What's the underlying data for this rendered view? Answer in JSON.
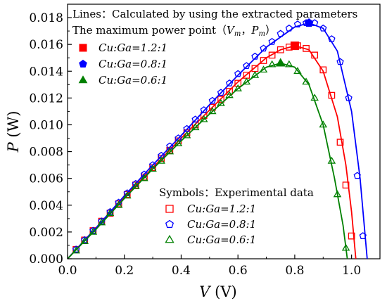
{
  "chart_data": {
    "type": "scatter",
    "xlabel": "V (V)",
    "ylabel": "P (W)",
    "xlim": [
      0,
      1.1
    ],
    "ylim": [
      0,
      0.019
    ],
    "xticks": [
      "0.0",
      "0.2",
      "0.4",
      "0.6",
      "0.8",
      "1.0"
    ],
    "yticks": [
      "0.000",
      "0.002",
      "0.004",
      "0.006",
      "0.008",
      "0.010",
      "0.012",
      "0.014",
      "0.016",
      "0.018"
    ],
    "grid": false,
    "legend_top": {
      "line1": "Lines：Calculated by using the extracted parameters",
      "line2": "The maximum power point（Vm，Pm）",
      "entries": [
        {
          "label": "Cu:Ga=1.2:1",
          "marker": "square-filled",
          "color": "#ff0000"
        },
        {
          "label": "Cu:Ga=0.8:1",
          "marker": "pentagon-filled",
          "color": "#0000ff"
        },
        {
          "label": "Cu:Ga=0.6:1",
          "marker": "triangle-filled",
          "color": "#008000"
        }
      ]
    },
    "legend_bottom": {
      "title": "Symbols：Experimental data",
      "entries": [
        {
          "label": "Cu:Ga=1.2:1",
          "marker": "square-open",
          "color": "#ff0000"
        },
        {
          "label": "Cu:Ga=0.8:1",
          "marker": "pentagon-open",
          "color": "#0000ff"
        },
        {
          "label": "Cu:Ga=0.6:1",
          "marker": "triangle-open",
          "color": "#008000"
        }
      ]
    },
    "series": [
      {
        "name": "Cu:Ga=1.2:1",
        "color": "#ff0000",
        "marker": "square",
        "mpp": {
          "V": 0.8,
          "P": 0.0159
        },
        "voc": 1.015,
        "curve": [
          [
            0,
            0
          ],
          [
            0.1,
            0.0023
          ],
          [
            0.2,
            0.0046
          ],
          [
            0.3,
            0.0068
          ],
          [
            0.4,
            0.009
          ],
          [
            0.5,
            0.0111
          ],
          [
            0.6,
            0.0132
          ],
          [
            0.7,
            0.015
          ],
          [
            0.75,
            0.0156
          ],
          [
            0.8,
            0.0159
          ],
          [
            0.85,
            0.0156
          ],
          [
            0.9,
            0.014
          ],
          [
            0.95,
            0.0106
          ],
          [
            0.98,
            0.007
          ],
          [
            1.0,
            0.0035
          ],
          [
            1.015,
            0
          ]
        ],
        "points": [
          [
            0.03,
            0.0007
          ],
          [
            0.06,
            0.0014
          ],
          [
            0.09,
            0.0021
          ],
          [
            0.12,
            0.0028
          ],
          [
            0.15,
            0.0034
          ],
          [
            0.18,
            0.0041
          ],
          [
            0.21,
            0.0048
          ],
          [
            0.24,
            0.0055
          ],
          [
            0.27,
            0.0061
          ],
          [
            0.3,
            0.0068
          ],
          [
            0.33,
            0.0075
          ],
          [
            0.36,
            0.0081
          ],
          [
            0.39,
            0.0088
          ],
          [
            0.42,
            0.0094
          ],
          [
            0.45,
            0.01
          ],
          [
            0.48,
            0.0107
          ],
          [
            0.51,
            0.0113
          ],
          [
            0.54,
            0.0119
          ],
          [
            0.57,
            0.0125
          ],
          [
            0.6,
            0.0131
          ],
          [
            0.63,
            0.0137
          ],
          [
            0.66,
            0.0142
          ],
          [
            0.69,
            0.0148
          ],
          [
            0.72,
            0.0152
          ],
          [
            0.75,
            0.0156
          ],
          [
            0.78,
            0.0158
          ],
          [
            0.81,
            0.0159
          ],
          [
            0.84,
            0.0157
          ],
          [
            0.87,
            0.0152
          ],
          [
            0.9,
            0.0141
          ],
          [
            0.93,
            0.0122
          ],
          [
            0.96,
            0.0087
          ],
          [
            0.98,
            0.0055
          ],
          [
            1.0,
            0.0017
          ]
        ]
      },
      {
        "name": "Cu:Ga=0.8:1",
        "color": "#0000ff",
        "marker": "pentagon",
        "mpp": {
          "V": 0.85,
          "P": 0.0176
        },
        "voc": 1.055,
        "curve": [
          [
            0,
            0
          ],
          [
            0.1,
            0.0023
          ],
          [
            0.2,
            0.0047
          ],
          [
            0.3,
            0.007
          ],
          [
            0.4,
            0.0092
          ],
          [
            0.5,
            0.0115
          ],
          [
            0.6,
            0.0137
          ],
          [
            0.7,
            0.0158
          ],
          [
            0.8,
            0.0173
          ],
          [
            0.85,
            0.0176
          ],
          [
            0.9,
            0.0172
          ],
          [
            0.95,
            0.0155
          ],
          [
            1.0,
            0.011
          ],
          [
            1.03,
            0.006
          ],
          [
            1.055,
            0
          ]
        ],
        "points": [
          [
            0.03,
            0.0007
          ],
          [
            0.06,
            0.0014
          ],
          [
            0.09,
            0.0021
          ],
          [
            0.12,
            0.0028
          ],
          [
            0.15,
            0.0035
          ],
          [
            0.18,
            0.0042
          ],
          [
            0.21,
            0.0049
          ],
          [
            0.24,
            0.0056
          ],
          [
            0.27,
            0.0063
          ],
          [
            0.3,
            0.007
          ],
          [
            0.33,
            0.0077
          ],
          [
            0.36,
            0.0084
          ],
          [
            0.39,
            0.009
          ],
          [
            0.42,
            0.0097
          ],
          [
            0.45,
            0.0104
          ],
          [
            0.48,
            0.0111
          ],
          [
            0.51,
            0.0118
          ],
          [
            0.54,
            0.0124
          ],
          [
            0.57,
            0.0131
          ],
          [
            0.6,
            0.0138
          ],
          [
            0.63,
            0.0144
          ],
          [
            0.66,
            0.0151
          ],
          [
            0.69,
            0.0157
          ],
          [
            0.72,
            0.0162
          ],
          [
            0.75,
            0.0168
          ],
          [
            0.78,
            0.0172
          ],
          [
            0.81,
            0.0175
          ],
          [
            0.84,
            0.0176
          ],
          [
            0.87,
            0.0176
          ],
          [
            0.9,
            0.0172
          ],
          [
            0.93,
            0.0164
          ],
          [
            0.96,
            0.0147
          ],
          [
            0.99,
            0.012
          ],
          [
            1.02,
            0.0062
          ],
          [
            1.04,
            0.0017
          ]
        ]
      },
      {
        "name": "Cu:Ga=0.6:1",
        "color": "#008000",
        "marker": "triangle",
        "mpp": {
          "V": 0.75,
          "P": 0.0146
        },
        "voc": 0.985,
        "curve": [
          [
            0,
            0
          ],
          [
            0.1,
            0.0022
          ],
          [
            0.2,
            0.0045
          ],
          [
            0.3,
            0.0067
          ],
          [
            0.4,
            0.0088
          ],
          [
            0.5,
            0.0108
          ],
          [
            0.6,
            0.0127
          ],
          [
            0.7,
            0.0143
          ],
          [
            0.75,
            0.0146
          ],
          [
            0.8,
            0.0143
          ],
          [
            0.85,
            0.013
          ],
          [
            0.9,
            0.01
          ],
          [
            0.94,
            0.006
          ],
          [
            0.97,
            0.0025
          ],
          [
            0.985,
            0
          ]
        ],
        "points": [
          [
            0.03,
            0.0006
          ],
          [
            0.06,
            0.0013
          ],
          [
            0.09,
            0.002
          ],
          [
            0.12,
            0.0027
          ],
          [
            0.15,
            0.0034
          ],
          [
            0.18,
            0.004
          ],
          [
            0.21,
            0.0047
          ],
          [
            0.24,
            0.0054
          ],
          [
            0.27,
            0.006
          ],
          [
            0.3,
            0.0067
          ],
          [
            0.33,
            0.0073
          ],
          [
            0.36,
            0.008
          ],
          [
            0.39,
            0.0086
          ],
          [
            0.42,
            0.0092
          ],
          [
            0.45,
            0.0098
          ],
          [
            0.48,
            0.0104
          ],
          [
            0.51,
            0.011
          ],
          [
            0.54,
            0.0116
          ],
          [
            0.57,
            0.0122
          ],
          [
            0.6,
            0.0127
          ],
          [
            0.63,
            0.0132
          ],
          [
            0.66,
            0.0137
          ],
          [
            0.69,
            0.0141
          ],
          [
            0.72,
            0.0145
          ],
          [
            0.75,
            0.0146
          ],
          [
            0.78,
            0.0145
          ],
          [
            0.81,
            0.014
          ],
          [
            0.84,
            0.0132
          ],
          [
            0.87,
            0.012
          ],
          [
            0.9,
            0.01
          ],
          [
            0.93,
            0.0073
          ],
          [
            0.95,
            0.0048
          ],
          [
            0.98,
            0.0008
          ]
        ]
      }
    ]
  }
}
